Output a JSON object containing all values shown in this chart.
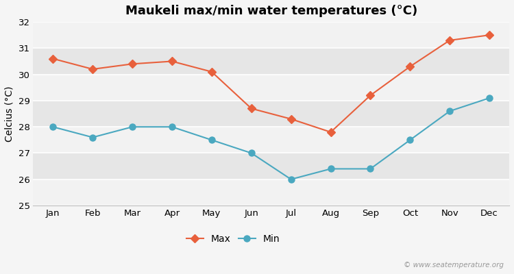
{
  "title": "Maukeli max/min water temperatures (°C)",
  "ylabel": "Celcius (°C)",
  "months": [
    "Jan",
    "Feb",
    "Mar",
    "Apr",
    "May",
    "Jun",
    "Jul",
    "Aug",
    "Sep",
    "Oct",
    "Nov",
    "Dec"
  ],
  "max_temps": [
    30.6,
    30.2,
    30.4,
    30.5,
    30.1,
    28.7,
    28.3,
    27.8,
    29.2,
    30.3,
    31.3,
    31.5
  ],
  "min_temps": [
    28.0,
    27.6,
    28.0,
    28.0,
    27.5,
    27.0,
    26.0,
    26.4,
    26.4,
    27.5,
    28.6,
    29.1
  ],
  "max_color": "#e8603c",
  "min_color": "#4aa8c0",
  "background_color": "#e8e8e8",
  "band_light": "#ebebeb",
  "band_dark": "#e0e0e0",
  "ylim": [
    25,
    32
  ],
  "yticks": [
    25,
    26,
    27,
    28,
    29,
    30,
    31,
    32
  ],
  "legend_labels": [
    "Max",
    "Min"
  ],
  "watermark": "© www.seatemperature.org",
  "title_fontsize": 13,
  "axis_label_fontsize": 10,
  "tick_fontsize": 9.5,
  "legend_fontsize": 10
}
